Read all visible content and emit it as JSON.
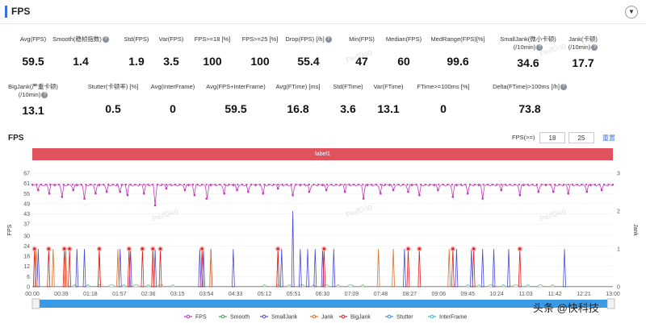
{
  "header": {
    "title": "FPS",
    "toggle_icon": "chevron-down-icon",
    "toggle_glyph": "▼"
  },
  "metrics": [
    {
      "label": "Avg(FPS)",
      "label2": "",
      "value": "59.5",
      "help": false
    },
    {
      "label": "Smooth(稳帧指数)",
      "label2": "",
      "value": "1.4",
      "help": true
    },
    {
      "label": "Std(FPS)",
      "label2": "",
      "value": "1.9",
      "help": false
    },
    {
      "label": "Var(FPS)",
      "label2": "",
      "value": "3.5",
      "help": false
    },
    {
      "label": "FPS>=18 [%]",
      "label2": "",
      "value": "100",
      "help": false
    },
    {
      "label": "FPS>=25 [%]",
      "label2": "",
      "value": "100",
      "help": false
    },
    {
      "label": "Drop(FPS) [/h]",
      "label2": "",
      "value": "55.4",
      "help": true
    },
    {
      "label": "Min(FPS)",
      "label2": "",
      "value": "47",
      "help": false
    },
    {
      "label": "Median(FPS)",
      "label2": "",
      "value": "60",
      "help": false
    },
    {
      "label": "MedRange(FPS)[%]",
      "label2": "",
      "value": "99.6",
      "help": false
    },
    {
      "label": "SmallJank(微小卡顿)",
      "label2": "(/10min)",
      "value": "34.6",
      "help": true
    },
    {
      "label": "Jank(卡顿)",
      "label2": "(/10min)",
      "value": "17.7",
      "help": true
    },
    {
      "label": "BigJank(严重卡顿)",
      "label2": "(/10min)",
      "value": "13.1",
      "help": true
    },
    {
      "label": "Stutter(卡顿率) [%]",
      "label2": "",
      "value": "0.5",
      "help": false
    },
    {
      "label": "Avg(InterFrame)",
      "label2": "",
      "value": "0",
      "help": false
    },
    {
      "label": "Avg(FPS+InterFrame)",
      "label2": "",
      "value": "59.5",
      "help": false
    },
    {
      "label": "Avg(FTime) [ms]",
      "label2": "",
      "value": "16.8",
      "help": false
    },
    {
      "label": "Std(FTime)",
      "label2": "",
      "value": "3.6",
      "help": false
    },
    {
      "label": "Var(FTime)",
      "label2": "",
      "value": "13.1",
      "help": false
    },
    {
      "label": "FTime>=100ms [%]",
      "label2": "",
      "value": "0",
      "help": false
    },
    {
      "label": "Delta(FTime)>100ms [/h]",
      "label2": "",
      "value": "73.8",
      "help": true
    }
  ],
  "chart_section": {
    "title": "FPS",
    "threshold_label": "FPS(>=)",
    "threshold_1": "18",
    "threshold_2": "25",
    "reset_label": "重置",
    "label_bar": "label1",
    "watermark": "PerfDog"
  },
  "chart_data": {
    "type": "line",
    "ylabel": "FPS",
    "y2label": "Jank",
    "yticks": [
      0,
      6,
      12,
      18,
      24,
      30,
      37,
      43,
      49,
      55,
      61,
      67
    ],
    "ylim": [
      0,
      67
    ],
    "y2ticks": [
      0,
      1,
      2,
      3
    ],
    "y2lim": [
      0,
      3
    ],
    "xticks": [
      "00:00",
      "00:39",
      "01:18",
      "01:57",
      "02:36",
      "03:15",
      "03:54",
      "04:33",
      "05:12",
      "05:51",
      "06:30",
      "07:09",
      "07:48",
      "08:27",
      "09:06",
      "09:45",
      "10:24",
      "11:03",
      "11:42",
      "12:21",
      "13:00"
    ],
    "xlim_seconds": [
      0,
      780
    ],
    "grid": true,
    "legend_position": "bottom",
    "colors": {
      "fps": "#c238b8",
      "smooth": "#3aa655",
      "smalljank": "#4a4ad8",
      "jank": "#e07020",
      "bigjank": "#e02020",
      "stutter": "#3a8ee8",
      "interframe": "#30c0c8"
    },
    "series": [
      {
        "name": "FPS",
        "baseline": 60,
        "dips": [
          {
            "t": 8,
            "v": 57
          },
          {
            "t": 23,
            "v": 55
          },
          {
            "t": 40,
            "v": 53
          },
          {
            "t": 55,
            "v": 57
          },
          {
            "t": 70,
            "v": 52
          },
          {
            "t": 85,
            "v": 55
          },
          {
            "t": 100,
            "v": 56
          },
          {
            "t": 118,
            "v": 56
          },
          {
            "t": 128,
            "v": 54
          },
          {
            "t": 150,
            "v": 55
          },
          {
            "t": 165,
            "v": 48
          },
          {
            "t": 180,
            "v": 58
          },
          {
            "t": 205,
            "v": 57
          },
          {
            "t": 218,
            "v": 54
          },
          {
            "t": 234,
            "v": 52
          },
          {
            "t": 258,
            "v": 55
          },
          {
            "t": 275,
            "v": 57
          },
          {
            "t": 290,
            "v": 56
          },
          {
            "t": 310,
            "v": 55
          },
          {
            "t": 330,
            "v": 58
          },
          {
            "t": 350,
            "v": 54
          },
          {
            "t": 372,
            "v": 56
          },
          {
            "t": 395,
            "v": 57
          },
          {
            "t": 420,
            "v": 56
          },
          {
            "t": 445,
            "v": 52
          },
          {
            "t": 468,
            "v": 55
          },
          {
            "t": 485,
            "v": 57
          },
          {
            "t": 505,
            "v": 56
          },
          {
            "t": 520,
            "v": 54
          },
          {
            "t": 545,
            "v": 57
          },
          {
            "t": 565,
            "v": 53
          },
          {
            "t": 585,
            "v": 55
          },
          {
            "t": 605,
            "v": 52
          },
          {
            "t": 630,
            "v": 57
          },
          {
            "t": 655,
            "v": 54
          },
          {
            "t": 680,
            "v": 56
          },
          {
            "t": 700,
            "v": 56
          },
          {
            "t": 720,
            "v": 55
          },
          {
            "t": 745,
            "v": 56
          },
          {
            "t": 765,
            "v": 57
          }
        ]
      },
      {
        "name": "Smooth",
        "baseline": 0,
        "noise_max": 1
      },
      {
        "name": "SmallJank",
        "events": [
          {
            "t": 8,
            "v": 1
          },
          {
            "t": 60,
            "v": 1
          },
          {
            "t": 70,
            "v": 1
          },
          {
            "t": 118,
            "v": 1
          },
          {
            "t": 132,
            "v": 1
          },
          {
            "t": 165,
            "v": 1
          },
          {
            "t": 225,
            "v": 1
          },
          {
            "t": 230,
            "v": 1
          },
          {
            "t": 240,
            "v": 1
          },
          {
            "t": 270,
            "v": 1
          },
          {
            "t": 335,
            "v": 1
          },
          {
            "t": 350,
            "v": 2
          },
          {
            "t": 360,
            "v": 1
          },
          {
            "t": 370,
            "v": 1
          },
          {
            "t": 380,
            "v": 1
          },
          {
            "t": 390,
            "v": 1
          },
          {
            "t": 405,
            "v": 1
          },
          {
            "t": 500,
            "v": 1
          },
          {
            "t": 570,
            "v": 1
          },
          {
            "t": 590,
            "v": 1
          },
          {
            "t": 605,
            "v": 1
          },
          {
            "t": 620,
            "v": 1
          },
          {
            "t": 640,
            "v": 1
          },
          {
            "t": 715,
            "v": 1
          }
        ]
      },
      {
        "name": "Jank",
        "events": [
          {
            "t": 5,
            "v": 1
          },
          {
            "t": 28,
            "v": 1
          },
          {
            "t": 45,
            "v": 1
          },
          {
            "t": 90,
            "v": 1
          },
          {
            "t": 115,
            "v": 1
          },
          {
            "t": 162,
            "v": 1
          },
          {
            "t": 240,
            "v": 1
          },
          {
            "t": 330,
            "v": 1
          },
          {
            "t": 465,
            "v": 1
          },
          {
            "t": 485,
            "v": 1
          },
          {
            "t": 560,
            "v": 1
          }
        ]
      },
      {
        "name": "BigJank",
        "events": [
          {
            "t": 3,
            "v": 1
          },
          {
            "t": 22,
            "v": 1
          },
          {
            "t": 43,
            "v": 1
          },
          {
            "t": 50,
            "v": 1
          },
          {
            "t": 90,
            "v": 1
          },
          {
            "t": 130,
            "v": 1
          },
          {
            "t": 148,
            "v": 1
          },
          {
            "t": 162,
            "v": 1
          },
          {
            "t": 172,
            "v": 1
          },
          {
            "t": 228,
            "v": 1
          },
          {
            "t": 330,
            "v": 1
          },
          {
            "t": 392,
            "v": 1
          },
          {
            "t": 505,
            "v": 1
          },
          {
            "t": 520,
            "v": 1
          },
          {
            "t": 565,
            "v": 1
          },
          {
            "t": 593,
            "v": 1
          },
          {
            "t": 655,
            "v": 1
          }
        ]
      },
      {
        "name": "Stutter",
        "events": []
      },
      {
        "name": "InterFrame",
        "events": []
      }
    ]
  },
  "scrollbar": {
    "handle_glyph": "|||"
  },
  "brand": "头条 @快科技"
}
